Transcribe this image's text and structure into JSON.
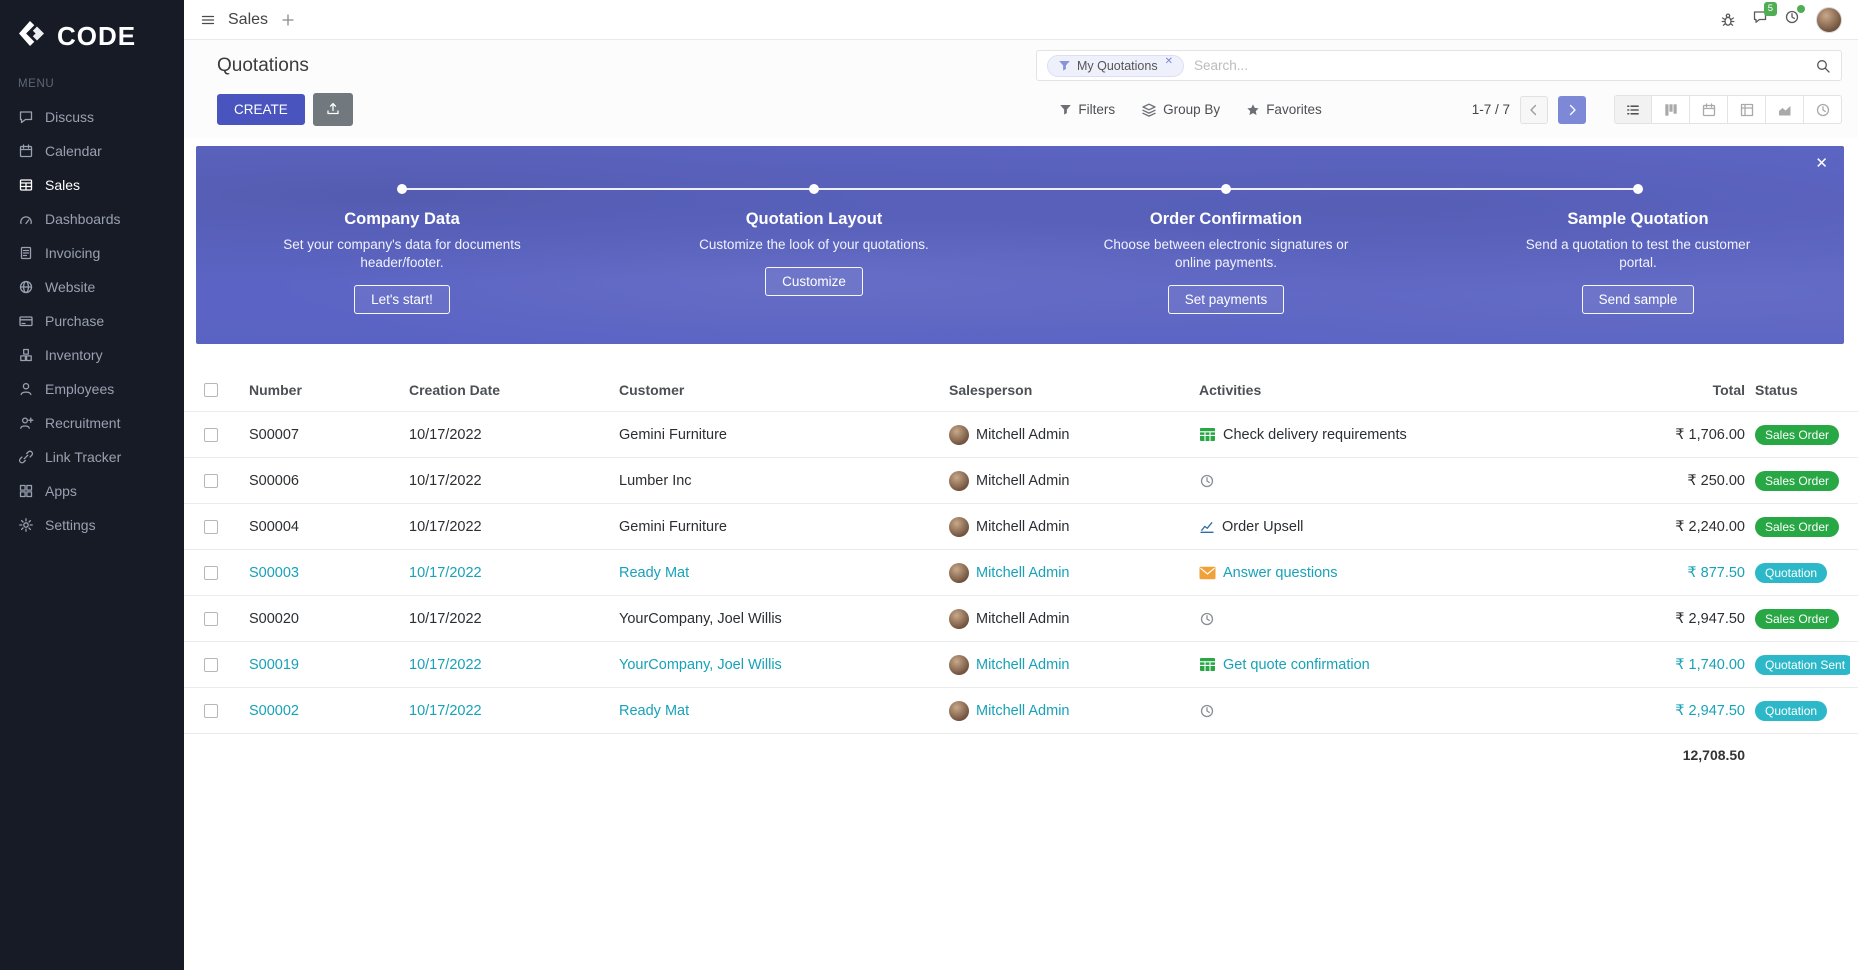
{
  "sidebar": {
    "logo_text": "CODE",
    "menu_label": "MENU",
    "items": [
      {
        "label": "Discuss",
        "icon": "discuss",
        "active": false
      },
      {
        "label": "Calendar",
        "icon": "calendar",
        "active": false
      },
      {
        "label": "Sales",
        "icon": "sales",
        "active": true
      },
      {
        "label": "Dashboards",
        "icon": "dashboards",
        "active": false
      },
      {
        "label": "Invoicing",
        "icon": "invoicing",
        "active": false
      },
      {
        "label": "Website",
        "icon": "website",
        "active": false
      },
      {
        "label": "Purchase",
        "icon": "purchase",
        "active": false
      },
      {
        "label": "Inventory",
        "icon": "inventory",
        "active": false
      },
      {
        "label": "Employees",
        "icon": "employees",
        "active": false
      },
      {
        "label": "Recruitment",
        "icon": "recruitment",
        "active": false
      },
      {
        "label": "Link Tracker",
        "icon": "link-tracker",
        "active": false
      },
      {
        "label": "Apps",
        "icon": "apps",
        "active": false
      },
      {
        "label": "Settings",
        "icon": "settings",
        "active": false
      }
    ]
  },
  "topbar": {
    "app_name": "Sales",
    "chat_badge": "5"
  },
  "control_panel": {
    "title": "Quotations",
    "search_chip": "My Quotations",
    "search_placeholder": "Search...",
    "create_label": "CREATE",
    "filters_label": "Filters",
    "group_by_label": "Group By",
    "favorites_label": "Favorites",
    "pager": "1-7 / 7"
  },
  "banner": {
    "steps": [
      {
        "title": "Company Data",
        "desc": "Set your company's data for documents header/footer.",
        "button": "Let's start!"
      },
      {
        "title": "Quotation Layout",
        "desc": "Customize the look of your quotations.",
        "button": "Customize"
      },
      {
        "title": "Order Confirmation",
        "desc": "Choose between electronic signatures or online payments.",
        "button": "Set payments"
      },
      {
        "title": "Sample Quotation",
        "desc": "Send a quotation to test the customer portal.",
        "button": "Send sample"
      }
    ]
  },
  "table": {
    "headers": {
      "number": "Number",
      "date": "Creation Date",
      "customer": "Customer",
      "salesperson": "Salesperson",
      "activities": "Activities",
      "total": "Total",
      "status": "Status"
    },
    "rows": [
      {
        "number": "S00007",
        "date": "10/17/2022",
        "customer": "Gemini Furniture",
        "salesperson": "Mitchell Admin",
        "activity_icon": "spreadsheet",
        "activity": "Check delivery requirements",
        "total": "₹ 1,706.00",
        "status": "Sales Order",
        "status_variant": "success",
        "highlight": false
      },
      {
        "number": "S00006",
        "date": "10/17/2022",
        "customer": "Lumber Inc",
        "salesperson": "Mitchell Admin",
        "activity_icon": "clock",
        "activity": "",
        "total": "₹ 250.00",
        "status": "Sales Order",
        "status_variant": "success",
        "highlight": false
      },
      {
        "number": "S00004",
        "date": "10/17/2022",
        "customer": "Gemini Furniture",
        "salesperson": "Mitchell Admin",
        "activity_icon": "line-chart",
        "activity": "Order Upsell",
        "total": "₹ 2,240.00",
        "status": "Sales Order",
        "status_variant": "success",
        "highlight": false
      },
      {
        "number": "S00003",
        "date": "10/17/2022",
        "customer": "Ready Mat",
        "salesperson": "Mitchell Admin",
        "activity_icon": "envelope",
        "activity": "Answer questions",
        "total": "₹ 877.50",
        "status": "Quotation",
        "status_variant": "info",
        "highlight": true
      },
      {
        "number": "S00020",
        "date": "10/17/2022",
        "customer": "YourCompany, Joel Willis",
        "salesperson": "Mitchell Admin",
        "activity_icon": "clock",
        "activity": "",
        "total": "₹ 2,947.50",
        "status": "Sales Order",
        "status_variant": "success",
        "highlight": false
      },
      {
        "number": "S00019",
        "date": "10/17/2022",
        "customer": "YourCompany, Joel Willis",
        "salesperson": "Mitchell Admin",
        "activity_icon": "spreadsheet",
        "activity": "Get quote confirmation",
        "total": "₹ 1,740.00",
        "status": "Quotation Sent",
        "status_variant": "info",
        "highlight": true
      },
      {
        "number": "S00002",
        "date": "10/17/2022",
        "customer": "Ready Mat",
        "salesperson": "Mitchell Admin",
        "activity_icon": "clock",
        "activity": "",
        "total": "₹ 2,947.50",
        "status": "Quotation",
        "status_variant": "info",
        "highlight": true
      }
    ],
    "footer_total": "12,708.50"
  }
}
